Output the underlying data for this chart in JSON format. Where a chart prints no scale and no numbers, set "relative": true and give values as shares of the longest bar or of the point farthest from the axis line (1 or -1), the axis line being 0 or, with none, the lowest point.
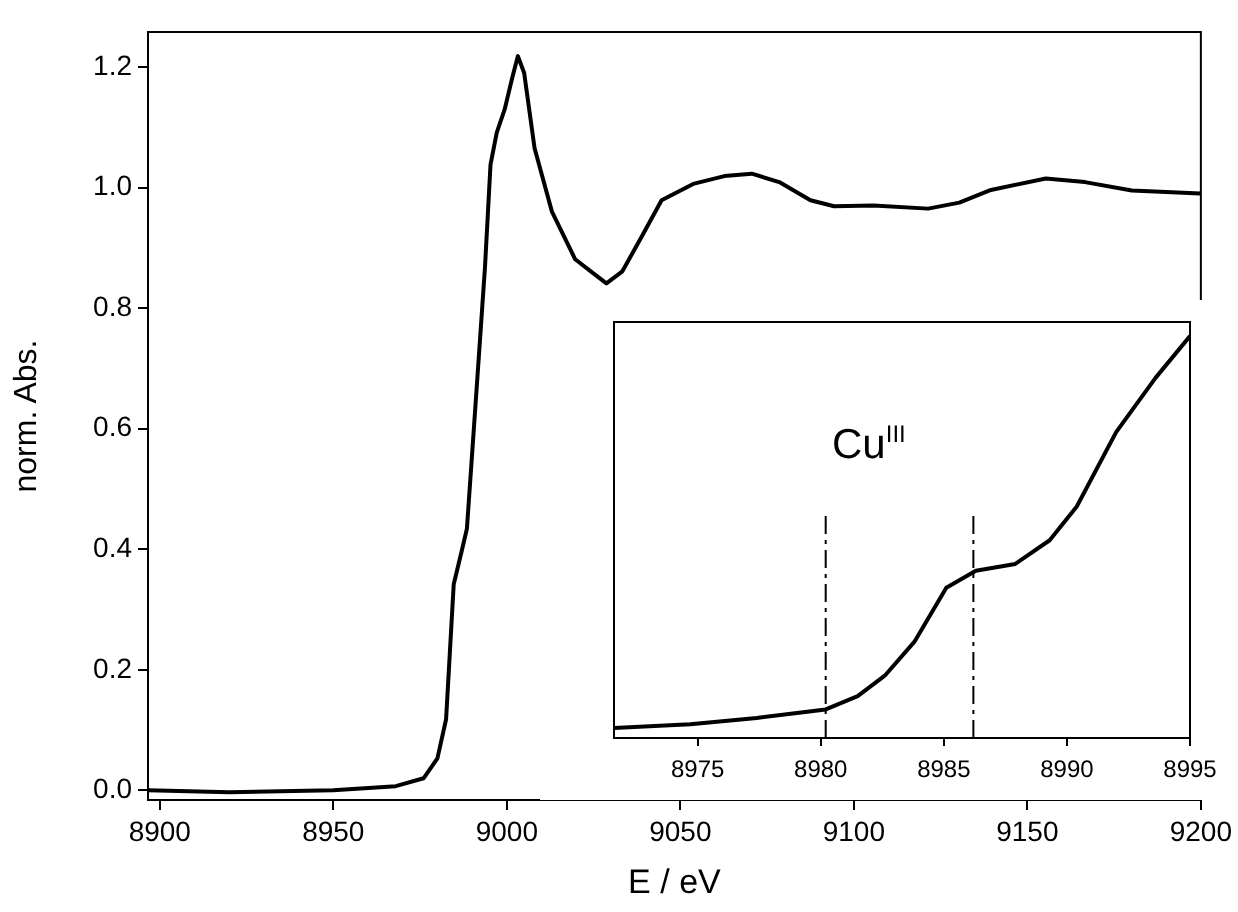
{
  "chart_data": [
    {
      "type": "line",
      "xlabel": "E / eV",
      "ylabel": "norm. Abs.",
      "xlim": [
        8896.6,
        9200
      ],
      "xticks": [
        8900,
        8950,
        9000,
        9050,
        9100,
        9150,
        9200
      ],
      "ylim": [
        -0.016,
        1.258
      ],
      "yticks": [
        {
          "value": 0,
          "label": "0.0"
        },
        0.2,
        0.4,
        0.6,
        0.8,
        {
          "value": 1,
          "label": "1.0"
        },
        1.2
      ],
      "grid": false,
      "legend": false,
      "marker": "none",
      "line_style": "solid",
      "series": [
        {
          "color": "#000000",
          "x": [
            8896.6,
            8920,
            8950,
            8968,
            8976,
            8980,
            8982.5,
            8984.7,
            8987,
            8988.5,
            8991.5,
            8993.7,
            8995.3,
            8997.1,
            8999.4,
            9001.6,
            9003.2,
            9005,
            9008,
            9013,
            9019.7,
            9024.2,
            9028.7,
            9033.3,
            9039,
            9044.6,
            9053.7,
            9062.7,
            9070.6,
            9078.5,
            9087.5,
            9094.3,
            9105.6,
            9121.4,
            9130.4,
            9139.5,
            9155.3,
            9166.6,
            9180.1,
            9199.8
          ],
          "values": [
            0,
            -0.003,
            0,
            0.007,
            0.02,
            0.053,
            0.118,
            0.342,
            0.397,
            0.434,
            0.683,
            0.867,
            1.038,
            1.091,
            1.13,
            1.183,
            1.218,
            1.19,
            1.065,
            0.96,
            0.881,
            0.861,
            0.841,
            0.861,
            0.92,
            0.979,
            1.006,
            1.019,
            1.023,
            1.009,
            0.979,
            0.969,
            0.97,
            0.965,
            0.975,
            0.996,
            1.015,
            1.009,
            0.995,
            0.99
          ]
        }
      ]
    },
    {
      "type": "line",
      "relative": true,
      "xlim": [
        8971.6,
        8995
      ],
      "xticks": [
        8975,
        8980,
        8985,
        8990,
        8995
      ],
      "tick_labels": "x",
      "grid": false,
      "legend": false,
      "marker": "none",
      "line_style": "solid",
      "ref_lines": [
        {
          "axis": "x",
          "value": 8980.2,
          "line_style": "dashed"
        },
        {
          "axis": "x",
          "value": 8986.2,
          "line_style": "dashed"
        }
      ],
      "annotations": [
        "Cu$^{III}$"
      ],
      "series": [
        {
          "color": "#000000",
          "x": [
            8971.6,
            8974.7,
            8977.4,
            8980.2,
            8981.5,
            8982.6,
            8983.8,
            8985.1,
            8986.3,
            8987.9,
            8989.3,
            8990.4,
            8992,
            8993.6,
            8995
          ],
          "values": [
            0.025,
            0.034,
            0.05,
            0.071,
            0.104,
            0.155,
            0.239,
            0.374,
            0.416,
            0.433,
            0.492,
            0.576,
            0.761,
            0.896,
            1
          ]
        }
      ]
    }
  ]
}
